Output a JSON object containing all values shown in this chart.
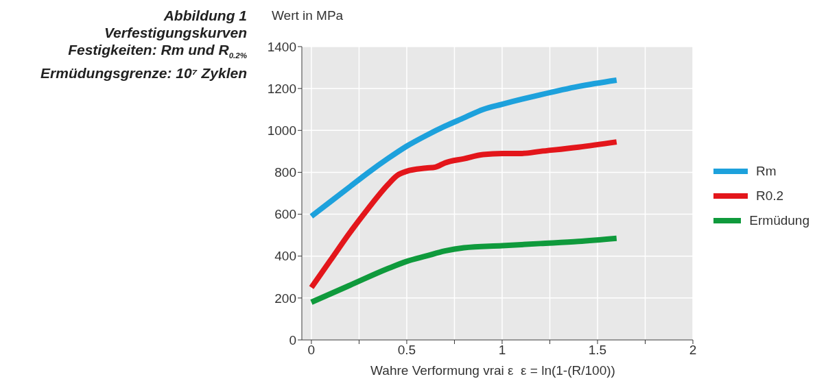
{
  "chart_data": {
    "type": "line",
    "title": "Abbildung 1",
    "subtitle": "Verfestigungskurven\nFestigkeiten: Rm und R$_{0.2%}$\nErmüdungsgrenze: 10⁷ Zyklen",
    "xlabel": "Wahre Verformung vrai ε  ε = ln(1-(R/100))",
    "ylabel": "Wert in MPa",
    "xlim": [
      -0.05,
      2
    ],
    "ylim": [
      0,
      1400
    ],
    "xticks": [
      0,
      {
        "value": 0.25,
        "label": null
      },
      0.5,
      {
        "value": 0.75,
        "label": null
      },
      1,
      {
        "value": 1.25,
        "label": null
      },
      1.5,
      {
        "value": 1.75,
        "label": null
      },
      2
    ],
    "yticks": [
      0,
      200,
      400,
      600,
      800,
      1000,
      1200,
      1400
    ],
    "grid": true,
    "legend": "right",
    "marker": "none",
    "line_style": "solid",
    "series": [
      {
        "name": "Rm",
        "color": "#1da1dc",
        "x": [
          0,
          0.1,
          0.2,
          0.3,
          0.4,
          0.5,
          0.6,
          0.7,
          0.8,
          0.9,
          1.0,
          1.2,
          1.4,
          1.6
        ],
        "values": [
          590,
          660,
          730,
          800,
          865,
          925,
          975,
          1020,
          1060,
          1100,
          1125,
          1170,
          1210,
          1240
        ]
      },
      {
        "name": "R0.2",
        "color": "#e3161b",
        "x": [
          0,
          0.1,
          0.2,
          0.3,
          0.4,
          0.45,
          0.5,
          0.6,
          0.65,
          0.7,
          0.8,
          0.9,
          1.0,
          1.1,
          1.2,
          1.4,
          1.6
        ],
        "values": [
          250,
          380,
          510,
          630,
          740,
          785,
          805,
          820,
          825,
          845,
          865,
          885,
          890,
          890,
          900,
          920,
          945
        ]
      },
      {
        "name": "Ermüdung",
        "color": "#0f9a3c",
        "x": [
          0,
          0.2,
          0.4,
          0.5,
          0.6,
          0.7,
          0.8,
          1.0,
          1.2,
          1.4,
          1.6
        ],
        "values": [
          180,
          260,
          340,
          375,
          400,
          425,
          440,
          450,
          460,
          470,
          485
        ]
      }
    ]
  }
}
